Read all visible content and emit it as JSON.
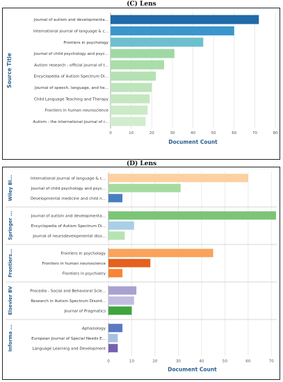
{
  "chart_data": [
    {
      "type": "bar",
      "title": "(C) Lens",
      "ylabel": "Source Title",
      "xlabel": "Document Count",
      "xlim": [
        0,
        80
      ],
      "xticks": [
        0,
        10,
        20,
        30,
        40,
        50,
        60,
        70,
        80
      ],
      "grid": true,
      "categories": [
        "Journal of autism and developmenta...",
        "International journal of language & c...",
        "Frontiers in psychology",
        "Journal of child psychology and psyc...",
        "Autism research : official journal of t...",
        "Encyclopedia of Autism Spectrum Di...",
        "Journal of speech, language, and he...",
        "Child Language Teaching and Therapy",
        "Frontiers in human neuroscience",
        "Autism : the international journal of r..."
      ],
      "values": [
        72,
        60,
        45,
        31,
        26,
        22,
        20,
        19,
        18,
        17
      ],
      "colors": [
        "#1f6aa8",
        "#3b96cc",
        "#6cc0cc",
        "#9fd8a5",
        "#a9dda9",
        "#b5e1b3",
        "#bde4ba",
        "#c4e7c0",
        "#cbeac7",
        "#d1edcd"
      ]
    },
    {
      "type": "bar",
      "title": "(D) Lens",
      "xlabel": "Document Count",
      "xlim": [
        0,
        72
      ],
      "xticks": [
        0,
        10,
        20,
        30,
        40,
        50,
        60,
        70
      ],
      "grid": true,
      "groups": [
        {
          "name": "Wiley Bl...",
          "categories": [
            "International journal of language & c...",
            "Journal of child psychology and psyc...",
            "Developmental medicine and child n..."
          ],
          "values": [
            60,
            31,
            6
          ],
          "colors": [
            "#fcd0a0",
            "#a6dba0",
            "#4a7fbf"
          ]
        },
        {
          "name": "Springer ...",
          "categories": [
            "Journal of autism and developmenta...",
            "Encyclopedia of Autism Spectrum Di...",
            "Journal of neurodevelopmental diso..."
          ],
          "values": [
            72,
            11,
            7
          ],
          "colors": [
            "#7cc576",
            "#a9cfe6",
            "#b7e3b3"
          ]
        },
        {
          "name": "Frontiers...",
          "categories": [
            "Frontiers in psychology",
            "Frontiers in human neuroscience",
            "Frontiers in psychiatry"
          ],
          "values": [
            45,
            18,
            6
          ],
          "colors": [
            "#f9a35d",
            "#e6601e",
            "#f98434"
          ]
        },
        {
          "name": "Elsevier BV",
          "categories": [
            "Procedia - Social and Behavioral Scie...",
            "Research in Autism Spectrum Disord...",
            "Journal of Pragmatics"
          ],
          "values": [
            12,
            11,
            10
          ],
          "colors": [
            "#a9a1cf",
            "#c2bde0",
            "#3ea53c"
          ]
        },
        {
          "name": "Informa ...",
          "categories": [
            "Aphasiology",
            "European Journal of Special Needs E...",
            "Language Learning and Development"
          ],
          "values": [
            6,
            4,
            4
          ],
          "colors": [
            "#5a79c4",
            "#a7c0e4",
            "#7561b0"
          ]
        }
      ]
    }
  ]
}
